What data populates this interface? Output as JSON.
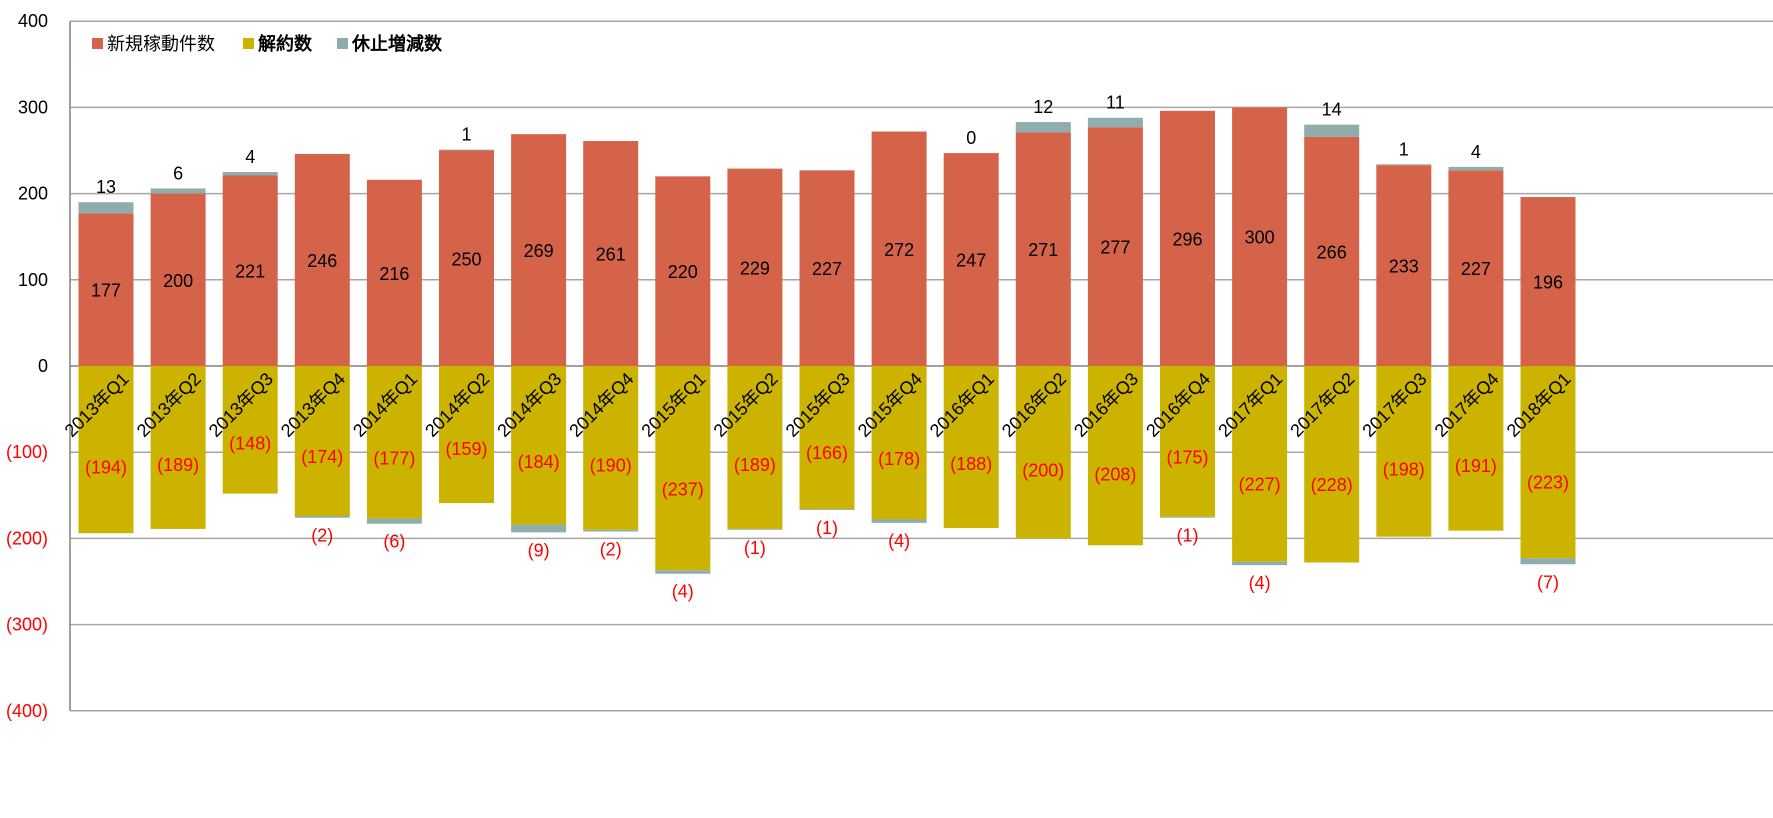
{
  "chart_data": {
    "type": "bar",
    "stacked": true,
    "categories": [
      "2013年Q1",
      "2013年Q2",
      "2013年Q3",
      "2013年Q4",
      "2014年Q1",
      "2014年Q2",
      "2014年Q3",
      "2014年Q4",
      "2015年Q1",
      "2015年Q2",
      "2015年Q3",
      "2015年Q4",
      "2016年Q1",
      "2016年Q2",
      "2016年Q3",
      "2016年Q4",
      "2017年Q1",
      "2017年Q2",
      "2017年Q3",
      "2017年Q4",
      "2018年Q1"
    ],
    "series": [
      {
        "name": "新規稼動件数",
        "color": "#d4634a",
        "values": [
          177,
          200,
          221,
          246,
          216,
          250,
          269,
          261,
          220,
          229,
          227,
          272,
          247,
          271,
          277,
          296,
          300,
          266,
          233,
          227,
          196
        ],
        "labels": [
          "177",
          "200",
          "221",
          "246",
          "216",
          "250",
          "269",
          "261",
          "220",
          "229",
          "227",
          "272",
          "247",
          "271",
          "277",
          "296",
          "300",
          "266",
          "233",
          "227",
          "196"
        ]
      },
      {
        "name": "解約数",
        "color": "#ccb300",
        "values": [
          -194,
          -189,
          -148,
          -174,
          -177,
          -159,
          -184,
          -190,
          -237,
          -189,
          -166,
          -178,
          -188,
          -200,
          -208,
          -175,
          -227,
          -228,
          -198,
          -191,
          -223
        ],
        "labels": [
          "(194)",
          "(189)",
          "(148)",
          "(174)",
          "(177)",
          "(159)",
          "(184)",
          "(190)",
          "(237)",
          "(189)",
          "(166)",
          "(178)",
          "(188)",
          "(200)",
          "(208)",
          "(175)",
          "(227)",
          "(228)",
          "(198)",
          "(191)",
          "(223)"
        ]
      },
      {
        "name": "休止増減数",
        "color": "#8fadad",
        "values": [
          13,
          6,
          4,
          -2,
          -6,
          1,
          -9,
          -2,
          -4,
          -1,
          -1,
          -4,
          0,
          12,
          11,
          -1,
          -4,
          14,
          1,
          4,
          -7
        ],
        "labels": [
          "13",
          "6",
          "4",
          "(2)",
          "(6)",
          "1",
          "(9)",
          "(2)",
          "(4)",
          "(1)",
          "(1)",
          "(4)",
          "0",
          "12",
          "11",
          "(1)",
          "(4)",
          "14",
          "1",
          "4",
          "(7)"
        ]
      }
    ],
    "y_ticks": [
      400,
      300,
      200,
      100,
      0,
      -100,
      -200,
      -300,
      -400
    ],
    "y_tick_labels": [
      "400",
      "300",
      "200",
      "100",
      "0",
      "(100)",
      "(200)",
      "(300)",
      "(400)"
    ],
    "ylim": [
      -400,
      400
    ],
    "grid": true,
    "legend_position": "top-left",
    "title": "",
    "xlabel": "",
    "ylabel": "",
    "colors": {
      "positive_label": "#000000",
      "negative_label": "#ff0000",
      "gridline": "#a6a6a6"
    }
  }
}
